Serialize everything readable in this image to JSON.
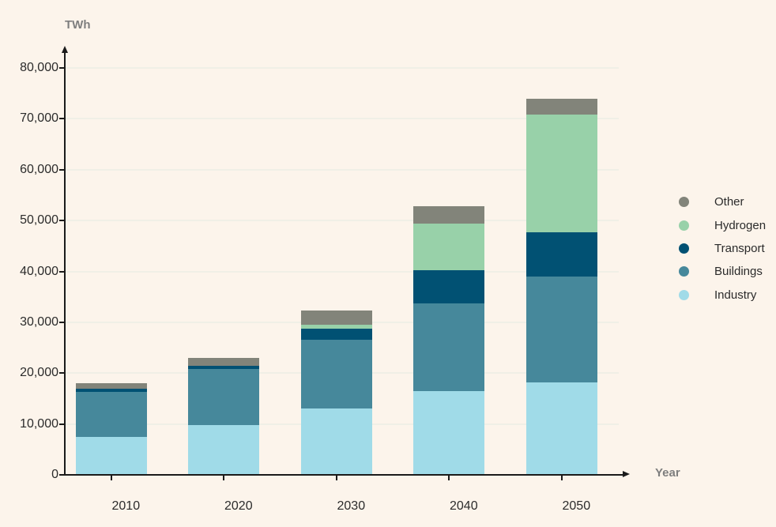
{
  "chart_data": {
    "type": "bar",
    "stacked": true,
    "title": "",
    "xlabel": "Year",
    "ylabel": "TWh",
    "categories": [
      "2010",
      "2020",
      "2030",
      "2040",
      "2050"
    ],
    "series": [
      {
        "name": "Industry",
        "color": "#A0DBE8",
        "values": [
          7500,
          9800,
          13000,
          16500,
          18200
        ]
      },
      {
        "name": "Buildings",
        "color": "#46889B",
        "values": [
          8800,
          11000,
          13500,
          17200,
          20800
        ]
      },
      {
        "name": "Transport",
        "color": "#015173",
        "values": [
          700,
          600,
          2200,
          6600,
          8700
        ]
      },
      {
        "name": "Hydrogen",
        "color": "#98D1A9",
        "values": [
          0,
          0,
          800,
          9100,
          23200
        ]
      },
      {
        "name": "Other",
        "color": "#82847A",
        "values": [
          1000,
          1600,
          2800,
          3400,
          3100
        ]
      }
    ],
    "totals": [
      18000,
      23000,
      32300,
      52800,
      74000
    ],
    "ylim": [
      0,
      80000
    ],
    "ytick_interval": 10000,
    "ytick_labels": [
      "0",
      "10,000",
      "20,000",
      "30,000",
      "40,000",
      "50,000",
      "60,000",
      "70,000",
      "80,000"
    ],
    "grid": true,
    "legend_position": "right",
    "legend_order": [
      "Other",
      "Hydrogen",
      "Transport",
      "Buildings",
      "Industry"
    ]
  },
  "colors": {
    "background": "#FCF4EB",
    "gridline": "#F0EFE6",
    "axis": "#1B1B1B",
    "axis_title": "#7E7E7E",
    "tick_label": "#2B2B2B"
  }
}
